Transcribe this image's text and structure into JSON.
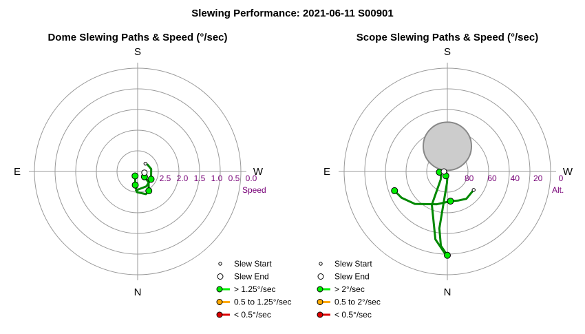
{
  "main_title": "Slewing Performance: 2021-06-11 S00901",
  "colors": {
    "ring": "#999999",
    "path": "#008800",
    "fast": "#00ee00",
    "medium": "#ffaa00",
    "slow": "#dd0000",
    "ring_label": "#770077",
    "exclusion_fill": "#cccccc",
    "exclusion_stroke": "#888888"
  },
  "chart_data": [
    {
      "type": "polar-path",
      "title": "Dome Slewing Paths & Speed (°/sec)",
      "compass": {
        "top": "S",
        "bottom": "N",
        "left": "E",
        "right": "W"
      },
      "radial_axis": {
        "label": "Speed",
        "ticks": [
          "2.5",
          "2.0",
          "1.5",
          "1.0",
          "0.5",
          "0.0"
        ],
        "values": [
          2.5,
          2.0,
          1.5,
          1.0,
          0.5,
          0.0
        ],
        "reversed": true,
        "range": [
          0,
          3
        ]
      },
      "legend": [
        {
          "label": "Slew Start",
          "kind": "start"
        },
        {
          "label": "Slew End",
          "kind": "end"
        },
        {
          "label": "> 1.25°/sec",
          "kind": "fast"
        },
        {
          "label": "0.5 to 1.25°/sec",
          "kind": "medium"
        },
        {
          "label": "< 0.5°/sec",
          "kind": "slow"
        }
      ],
      "paths": [
        {
          "speed": "fast",
          "points": [
            [
              150,
              2.85
            ],
            [
              170,
              2.6
            ],
            [
              178,
              2.4
            ],
            [
              200,
              2.3
            ],
            [
              210,
              2.35
            ],
            [
              225,
              2.55
            ],
            [
              232,
              2.75
            ]
          ]
        },
        {
          "speed": "fast",
          "points": [
            [
              240,
              2.55
            ],
            [
              280,
              2.6
            ],
            [
              305,
              2.65
            ],
            [
              315,
              2.68
            ]
          ]
        },
        {
          "speed": "fast",
          "points": [
            [
              175,
              2.45
            ],
            [
              210,
              2.5
            ],
            [
              240,
              2.55
            ]
          ]
        },
        {
          "speed": "fast",
          "points": [
            [
              265,
              2.75
            ],
            [
              260,
              2.8
            ]
          ]
        }
      ],
      "markers": [
        {
          "kind": "fast",
          "az": 150,
          "r": 2.85
        },
        {
          "kind": "fast",
          "az": 170,
          "r": 2.6
        },
        {
          "kind": "fast",
          "az": 210,
          "r": 2.35
        },
        {
          "kind": "fast",
          "az": 232,
          "r": 2.75
        },
        {
          "kind": "fast",
          "az": 240,
          "r": 2.55
        },
        {
          "kind": "start",
          "az": 315,
          "r": 2.68
        },
        {
          "kind": "end",
          "az": 260,
          "r": 2.8
        }
      ]
    },
    {
      "type": "polar-path",
      "title": "Scope Slewing Paths & Speed (°/sec)",
      "compass": {
        "top": "S",
        "bottom": "N",
        "left": "E",
        "right": "W"
      },
      "radial_axis": {
        "label": "Alt.",
        "ticks": [
          "80",
          "60",
          "40",
          "20",
          "0"
        ],
        "values": [
          80,
          60,
          40,
          20,
          0
        ],
        "reversed": true,
        "range": [
          0,
          90
        ]
      },
      "exclusion_zone": {
        "az": 0,
        "alt": 68,
        "radius_deg": 21
      },
      "legend": [
        {
          "label": "Slew Start",
          "kind": "start"
        },
        {
          "label": "Slew End",
          "kind": "end"
        },
        {
          "label": "> 2°/sec",
          "kind": "fast"
        },
        {
          "label": "0.5 to 2°/sec",
          "kind": "medium"
        },
        {
          "label": "< 0.5°/sec",
          "kind": "slow"
        }
      ],
      "paths": [
        {
          "speed": "fast",
          "points": [
            [
              95,
              83
            ],
            [
              110,
              84
            ],
            [
              140,
              81
            ],
            [
              155,
              58
            ],
            [
              170,
              30
            ],
            [
              178,
              19
            ],
            [
              181,
              17
            ]
          ]
        },
        {
          "speed": "fast",
          "points": [
            [
              180,
              17
            ],
            [
              175,
              25
            ],
            [
              172,
              40
            ],
            [
              173,
              60
            ],
            [
              178,
              80
            ],
            [
              182,
              86
            ]
          ]
        },
        {
          "speed": "fast",
          "points": [
            [
              110,
              41
            ],
            [
              120,
              44
            ],
            [
              135,
              50
            ],
            [
              162,
              60
            ],
            [
              176,
              63
            ],
            [
              183,
              64
            ]
          ]
        },
        {
          "speed": "fast",
          "points": [
            [
              183,
              64
            ],
            [
              200,
              63
            ],
            [
              215,
              61
            ],
            [
              235,
              62
            ]
          ]
        },
        {
          "speed": "fast",
          "points": [
            [
              95,
              83
            ],
            [
              92,
              86
            ],
            [
              90,
              87
            ]
          ]
        }
      ],
      "markers": [
        {
          "kind": "fast",
          "az": 110,
          "alt": 41
        },
        {
          "kind": "fast",
          "az": 180,
          "alt": 17
        },
        {
          "kind": "fast",
          "az": 186,
          "alt": 64
        },
        {
          "kind": "fast",
          "az": 95,
          "alt": 83
        },
        {
          "kind": "fast",
          "az": 160,
          "alt": 86
        },
        {
          "kind": "start",
          "az": 235,
          "alt": 62
        },
        {
          "kind": "end",
          "az": 90,
          "alt": 87
        }
      ]
    }
  ]
}
